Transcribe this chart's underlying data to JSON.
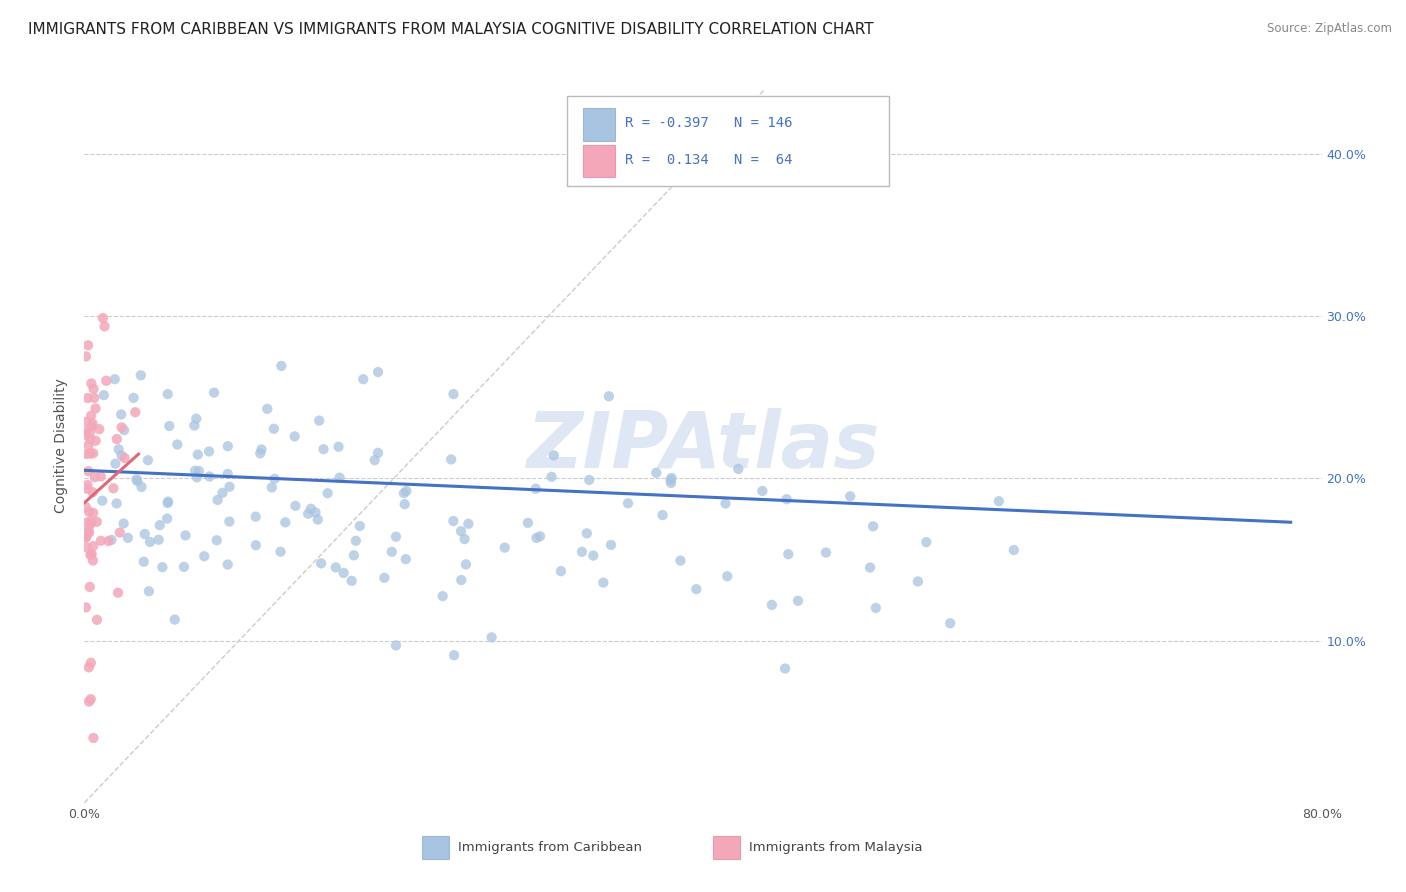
{
  "title": "IMMIGRANTS FROM CARIBBEAN VS IMMIGRANTS FROM MALAYSIA COGNITIVE DISABILITY CORRELATION CHART",
  "source": "Source: ZipAtlas.com",
  "ylabel": "Cognitive Disability",
  "legend_labels": [
    "Immigrants from Caribbean",
    "Immigrants from Malaysia"
  ],
  "caribbean_color": "#a8c4e0",
  "malaysia_color": "#f4a7b9",
  "caribbean_edge_color": "#7aadd4",
  "malaysia_edge_color": "#e888a0",
  "caribbean_line_color": "#4472c4",
  "malaysia_line_color": "#e06878",
  "r_caribbean": -0.397,
  "n_caribbean": 146,
  "r_malaysia": 0.134,
  "n_malaysia": 64,
  "xlim": [
    0.0,
    0.8
  ],
  "ylim": [
    0.0,
    0.44
  ],
  "xticks": [
    0.0,
    0.1,
    0.2,
    0.3,
    0.4,
    0.5,
    0.6,
    0.7,
    0.8
  ],
  "yticks": [
    0.0,
    0.1,
    0.2,
    0.3,
    0.4
  ],
  "watermark": "ZIPAtlas",
  "background_color": "#ffffff",
  "grid_color": "#cccccc",
  "tick_color": "#4472c4",
  "title_fontsize": 11,
  "axis_fontsize": 10,
  "tick_fontsize": 9
}
